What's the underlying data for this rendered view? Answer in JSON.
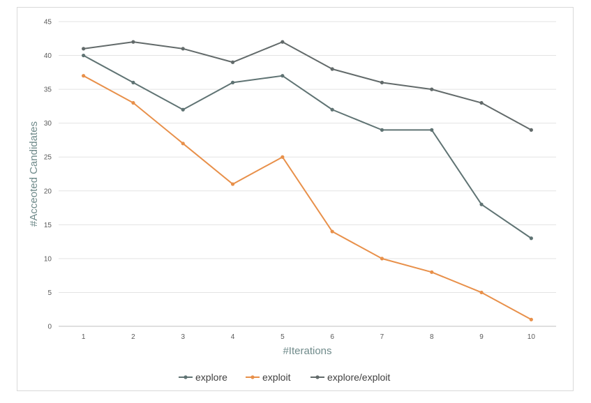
{
  "chart_data": {
    "type": "line",
    "title": "",
    "xlabel": "#Iterations",
    "ylabel": "#Acceoted Candidates",
    "x": [
      1,
      2,
      3,
      4,
      5,
      6,
      7,
      8,
      9,
      10
    ],
    "ylim": [
      0,
      45
    ],
    "yticks": [
      0,
      5,
      10,
      15,
      20,
      25,
      30,
      35,
      40,
      45
    ],
    "grid": true,
    "legend_position": "bottom",
    "series": [
      {
        "name": "explore",
        "color": "#5f7373",
        "values": [
          40,
          36,
          32,
          36,
          37,
          32,
          29,
          29,
          18,
          13
        ]
      },
      {
        "name": "exploit",
        "color": "#e8904a",
        "values": [
          37,
          33,
          27,
          21,
          25,
          14,
          10,
          8,
          5,
          1
        ]
      },
      {
        "name": "explore/exploit",
        "color": "#626a6a",
        "values": [
          41,
          42,
          41,
          39,
          42,
          38,
          36,
          35,
          33,
          29
        ]
      }
    ]
  }
}
